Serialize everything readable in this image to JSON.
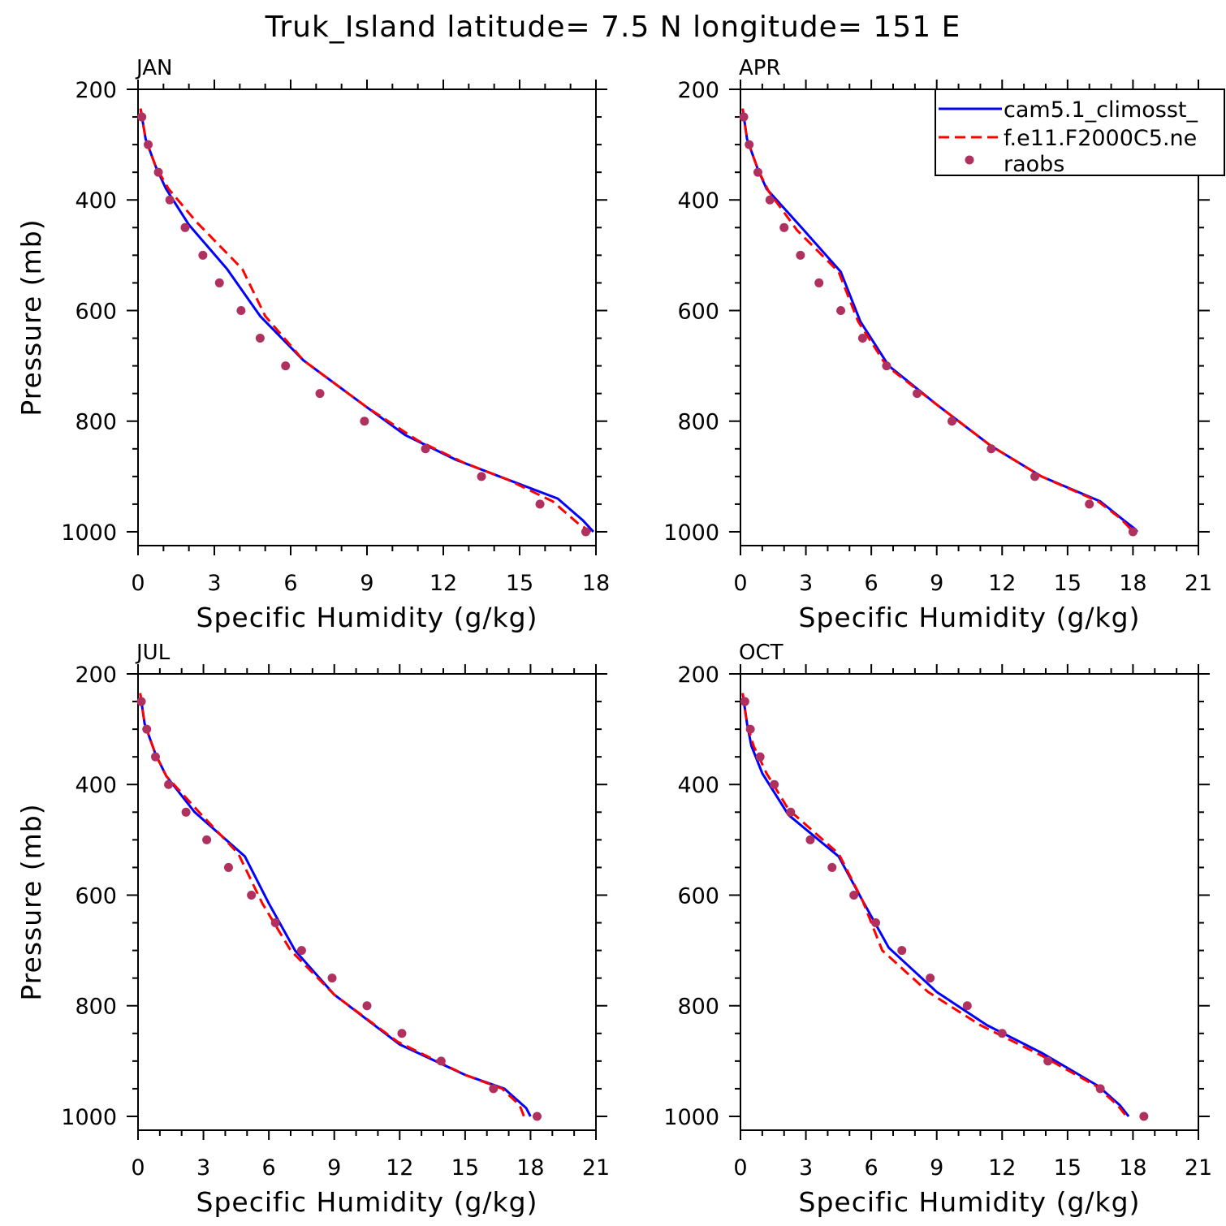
{
  "figure": {
    "title": "Truk_Island  latitude= 7.5 N longitude= 151 E"
  },
  "legend": {
    "entries": [
      {
        "name": "cam5.1_climosst_",
        "color": "#0000ff",
        "style": "solid"
      },
      {
        "name": "f.e11.F2000C5.ne",
        "color": "#ff0000",
        "style": "dashed"
      },
      {
        "name": "raobs",
        "color": "#b03060",
        "style": "dots"
      }
    ]
  },
  "chart_data": [
    {
      "type": "line",
      "title": "JAN",
      "xlabel": "Specific Humidity (g/kg)",
      "ylabel": "Pressure (mb)",
      "xlim": [
        0,
        18
      ],
      "ylim": [
        200,
        1025
      ],
      "y_inverted": true,
      "xticks": [
        0,
        3,
        6,
        9,
        12,
        15,
        18
      ],
      "yticks": [
        200,
        400,
        600,
        800,
        1000
      ],
      "series": [
        {
          "name": "cam5.1_climosst_",
          "color": "#0000ff",
          "x": [
            0.1,
            0.3,
            0.7,
            1.1,
            2.0,
            3.5,
            4.8,
            6.5,
            9.0,
            10.5,
            12.5,
            14.5,
            16.5,
            17.5,
            17.9
          ],
          "y": [
            235,
            290,
            340,
            380,
            445,
            525,
            610,
            690,
            775,
            825,
            870,
            905,
            940,
            980,
            1000
          ]
        },
        {
          "name": "f.e11.F2000C5.ne",
          "color": "#ff0000",
          "x": [
            0.1,
            0.3,
            0.7,
            1.2,
            2.3,
            4.1,
            5.0,
            6.5,
            9.0,
            11.0,
            12.8,
            14.5,
            16.3,
            17.3,
            17.8
          ],
          "y": [
            235,
            290,
            340,
            380,
            440,
            525,
            610,
            690,
            775,
            835,
            875,
            905,
            945,
            985,
            1000
          ]
        },
        {
          "name": "raobs",
          "color": "#b03060",
          "x": [
            0.15,
            0.4,
            0.8,
            1.25,
            1.85,
            2.55,
            3.2,
            4.05,
            4.8,
            5.8,
            7.15,
            8.9,
            11.3,
            13.5,
            15.8,
            17.6
          ],
          "y": [
            250,
            300,
            350,
            400,
            450,
            500,
            550,
            600,
            650,
            700,
            750,
            800,
            850,
            900,
            950,
            1000
          ]
        }
      ]
    },
    {
      "type": "line",
      "title": "APR",
      "xlabel": "Specific Humidity (g/kg)",
      "ylabel": "",
      "xlim": [
        0,
        21
      ],
      "ylim": [
        200,
        1025
      ],
      "y_inverted": true,
      "xticks": [
        0,
        3,
        6,
        9,
        12,
        15,
        18,
        21
      ],
      "yticks": [
        200,
        400,
        600,
        800,
        1000
      ],
      "series": [
        {
          "name": "cam5.1_climosst_",
          "color": "#0000ff",
          "x": [
            0.1,
            0.3,
            0.8,
            1.2,
            2.8,
            4.6,
            5.5,
            6.8,
            9.0,
            11.5,
            13.8,
            16.5,
            17.6,
            18.1,
            18.2
          ],
          "y": [
            235,
            290,
            345,
            380,
            450,
            530,
            620,
            700,
            770,
            845,
            900,
            945,
            980,
            995,
            1000
          ]
        },
        {
          "name": "f.e11.F2000C5.ne",
          "color": "#ff0000",
          "x": [
            0.1,
            0.3,
            0.8,
            1.3,
            2.6,
            4.5,
            5.4,
            6.7,
            9.0,
            11.5,
            13.8,
            16.4,
            17.4,
            17.9,
            18.1
          ],
          "y": [
            235,
            290,
            345,
            385,
            455,
            530,
            620,
            700,
            770,
            845,
            900,
            945,
            975,
            995,
            1000
          ]
        },
        {
          "name": "raobs",
          "color": "#b03060",
          "x": [
            0.15,
            0.4,
            0.8,
            1.35,
            2.0,
            2.75,
            3.6,
            4.6,
            5.6,
            6.7,
            8.1,
            9.7,
            11.5,
            13.5,
            16.0,
            18.0
          ],
          "y": [
            250,
            300,
            350,
            400,
            450,
            500,
            550,
            600,
            650,
            700,
            750,
            800,
            850,
            900,
            950,
            1000
          ]
        }
      ]
    },
    {
      "type": "line",
      "title": "JUL",
      "xlabel": "Specific Humidity (g/kg)",
      "ylabel": "Pressure (mb)",
      "xlim": [
        0,
        21
      ],
      "ylim": [
        200,
        1025
      ],
      "y_inverted": true,
      "xticks": [
        0,
        3,
        6,
        9,
        12,
        15,
        18,
        21
      ],
      "yticks": [
        200,
        400,
        600,
        800,
        1000
      ],
      "series": [
        {
          "name": "cam5.1_climosst_",
          "color": "#0000ff",
          "x": [
            0.1,
            0.3,
            0.8,
            1.3,
            2.6,
            4.9,
            6.0,
            7.2,
            9.0,
            12.0,
            15.0,
            16.8,
            17.8,
            18.0
          ],
          "y": [
            235,
            290,
            345,
            385,
            450,
            530,
            615,
            700,
            780,
            870,
            925,
            950,
            985,
            1000
          ]
        },
        {
          "name": "f.e11.F2000C5.ne",
          "color": "#ff0000",
          "x": [
            0.1,
            0.3,
            0.8,
            1.3,
            2.8,
            4.6,
            5.7,
            7.0,
            9.0,
            11.9,
            15.0,
            16.7,
            17.5,
            17.7
          ],
          "y": [
            235,
            290,
            345,
            385,
            450,
            525,
            615,
            700,
            780,
            865,
            925,
            950,
            980,
            1000
          ]
        },
        {
          "name": "raobs",
          "color": "#b03060",
          "x": [
            0.15,
            0.4,
            0.8,
            1.4,
            2.2,
            3.15,
            4.15,
            5.2,
            6.3,
            7.5,
            8.9,
            10.5,
            12.1,
            13.9,
            16.3,
            18.3
          ],
          "y": [
            250,
            300,
            350,
            400,
            450,
            500,
            550,
            600,
            650,
            700,
            750,
            800,
            850,
            900,
            950,
            1000
          ]
        }
      ]
    },
    {
      "type": "line",
      "title": "OCT",
      "xlabel": "Specific Humidity (g/kg)",
      "ylabel": "",
      "xlim": [
        0,
        21
      ],
      "ylim": [
        200,
        1025
      ],
      "y_inverted": true,
      "xticks": [
        0,
        3,
        6,
        9,
        12,
        15,
        18,
        21
      ],
      "yticks": [
        200,
        400,
        600,
        800,
        1000
      ],
      "series": [
        {
          "name": "cam5.1_climosst_",
          "color": "#0000ff",
          "x": [
            0.1,
            0.3,
            0.5,
            1.0,
            2.2,
            4.5,
            5.6,
            6.8,
            9.0,
            11.3,
            13.8,
            16.4,
            17.4,
            17.7,
            17.8
          ],
          "y": [
            235,
            290,
            330,
            380,
            455,
            530,
            610,
            695,
            775,
            835,
            885,
            945,
            980,
            995,
            1000
          ]
        },
        {
          "name": "f.e11.F2000C5.ne",
          "color": "#ff0000",
          "x": [
            0.1,
            0.3,
            0.6,
            1.2,
            2.2,
            4.5,
            5.6,
            6.5,
            8.6,
            11.0,
            13.8,
            16.3,
            17.3,
            17.6,
            17.7
          ],
          "y": [
            235,
            290,
            330,
            380,
            445,
            525,
            610,
            700,
            775,
            835,
            890,
            945,
            980,
            995,
            1000
          ]
        },
        {
          "name": "raobs",
          "color": "#b03060",
          "x": [
            0.2,
            0.45,
            0.9,
            1.55,
            2.3,
            3.2,
            4.2,
            5.2,
            6.2,
            7.4,
            8.7,
            10.4,
            12.0,
            14.1,
            16.5,
            18.5
          ],
          "y": [
            250,
            300,
            350,
            400,
            450,
            500,
            550,
            600,
            650,
            700,
            750,
            800,
            850,
            900,
            950,
            1000
          ]
        }
      ]
    }
  ]
}
